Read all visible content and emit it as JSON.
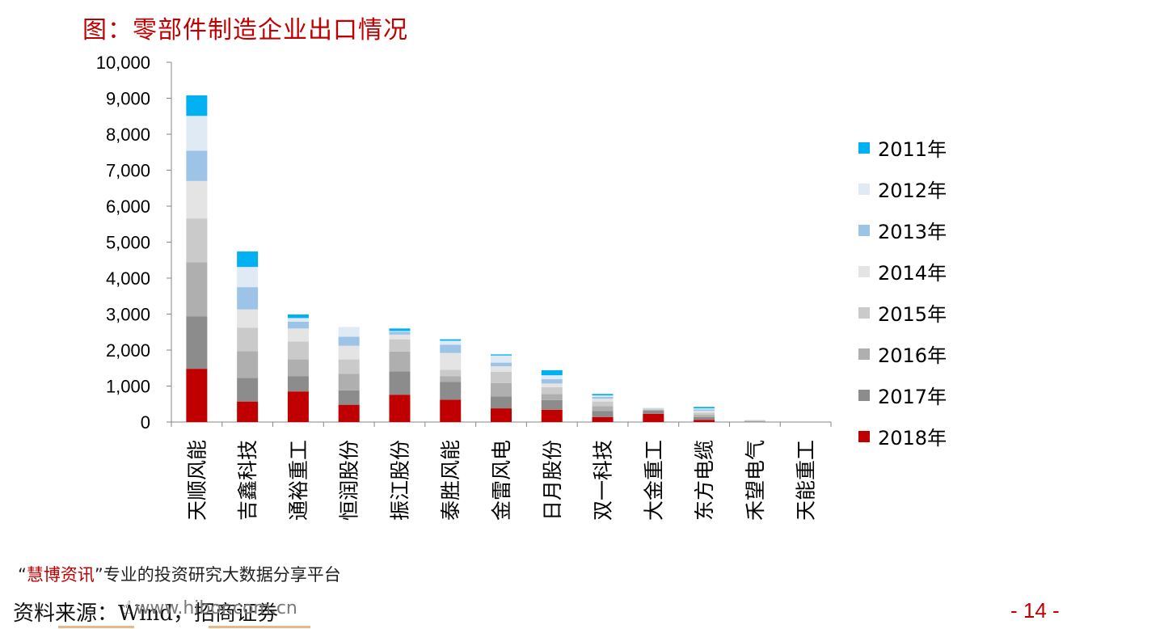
{
  "title": "图：零部件制造企业出口情况",
  "source": "资料来源：Wind，招商证券",
  "page_number": "- 14 -",
  "watermark": {
    "quote_open": "“",
    "brand": "慧博资讯",
    "quote_close": "”",
    "tagline": "专业的投资研究大数据分享平台",
    "url": "www.hibor.com.cn"
  },
  "colors": {
    "title": "#c00000",
    "2011年": "#00b0f0",
    "2012年": "#dfeaf5",
    "2013年": "#9dc3e6",
    "2014年": "#e4e4e4",
    "2015年": "#cacaca",
    "2016年": "#afafaf",
    "2017年": "#8c8c8c",
    "2018年": "#c00000"
  },
  "chart_data": {
    "type": "bar",
    "stacked": true,
    "title": "图：零部件制造企业出口情况",
    "categories": [
      "天顺风能",
      "吉鑫科技",
      "通裕重工",
      "恒润股份",
      "振江股份",
      "泰胜风能",
      "金雷风电",
      "日月股份",
      "双一科技",
      "大金重工",
      "东方电缆",
      "禾望电气",
      "天能重工"
    ],
    "ylim": [
      0,
      10000
    ],
    "yticks": [
      0,
      1000,
      2000,
      3000,
      4000,
      5000,
      6000,
      7000,
      8000,
      9000,
      10000
    ],
    "ytick_labels": [
      "0",
      "1,000",
      "2,000",
      "3,000",
      "4,000",
      "5,000",
      "6,000",
      "7,000",
      "8,000",
      "9,000",
      "10,000"
    ],
    "grid": false,
    "legend_position": "right",
    "series": [
      {
        "name": "2018年",
        "values": [
          1480,
          570,
          850,
          480,
          760,
          620,
          380,
          340,
          140,
          230,
          60,
          0,
          0
        ]
      },
      {
        "name": "2017年",
        "values": [
          1460,
          660,
          420,
          400,
          650,
          500,
          330,
          270,
          170,
          90,
          80,
          10,
          0
        ]
      },
      {
        "name": "2016年",
        "values": [
          1500,
          740,
          470,
          460,
          550,
          150,
          370,
          170,
          130,
          20,
          60,
          20,
          0
        ]
      },
      {
        "name": "2015年",
        "values": [
          1220,
          650,
          500,
          400,
          340,
          180,
          320,
          190,
          130,
          20,
          60,
          20,
          0
        ]
      },
      {
        "name": "2014年",
        "values": [
          1040,
          510,
          360,
          380,
          130,
          470,
          150,
          100,
          80,
          10,
          50,
          10,
          0
        ]
      },
      {
        "name": "2013年",
        "values": [
          840,
          620,
          190,
          250,
          80,
          230,
          100,
          120,
          50,
          10,
          40,
          0,
          0
        ]
      },
      {
        "name": "2012年",
        "values": [
          970,
          560,
          100,
          270,
          20,
          110,
          200,
          110,
          40,
          20,
          30,
          0,
          0
        ]
      },
      {
        "name": "2011年",
        "values": [
          570,
          430,
          100,
          0,
          70,
          40,
          30,
          140,
          40,
          0,
          40,
          0,
          0
        ]
      }
    ],
    "legend": [
      "2011年",
      "2012年",
      "2013年",
      "2014年",
      "2015年",
      "2016年",
      "2017年",
      "2018年"
    ]
  }
}
